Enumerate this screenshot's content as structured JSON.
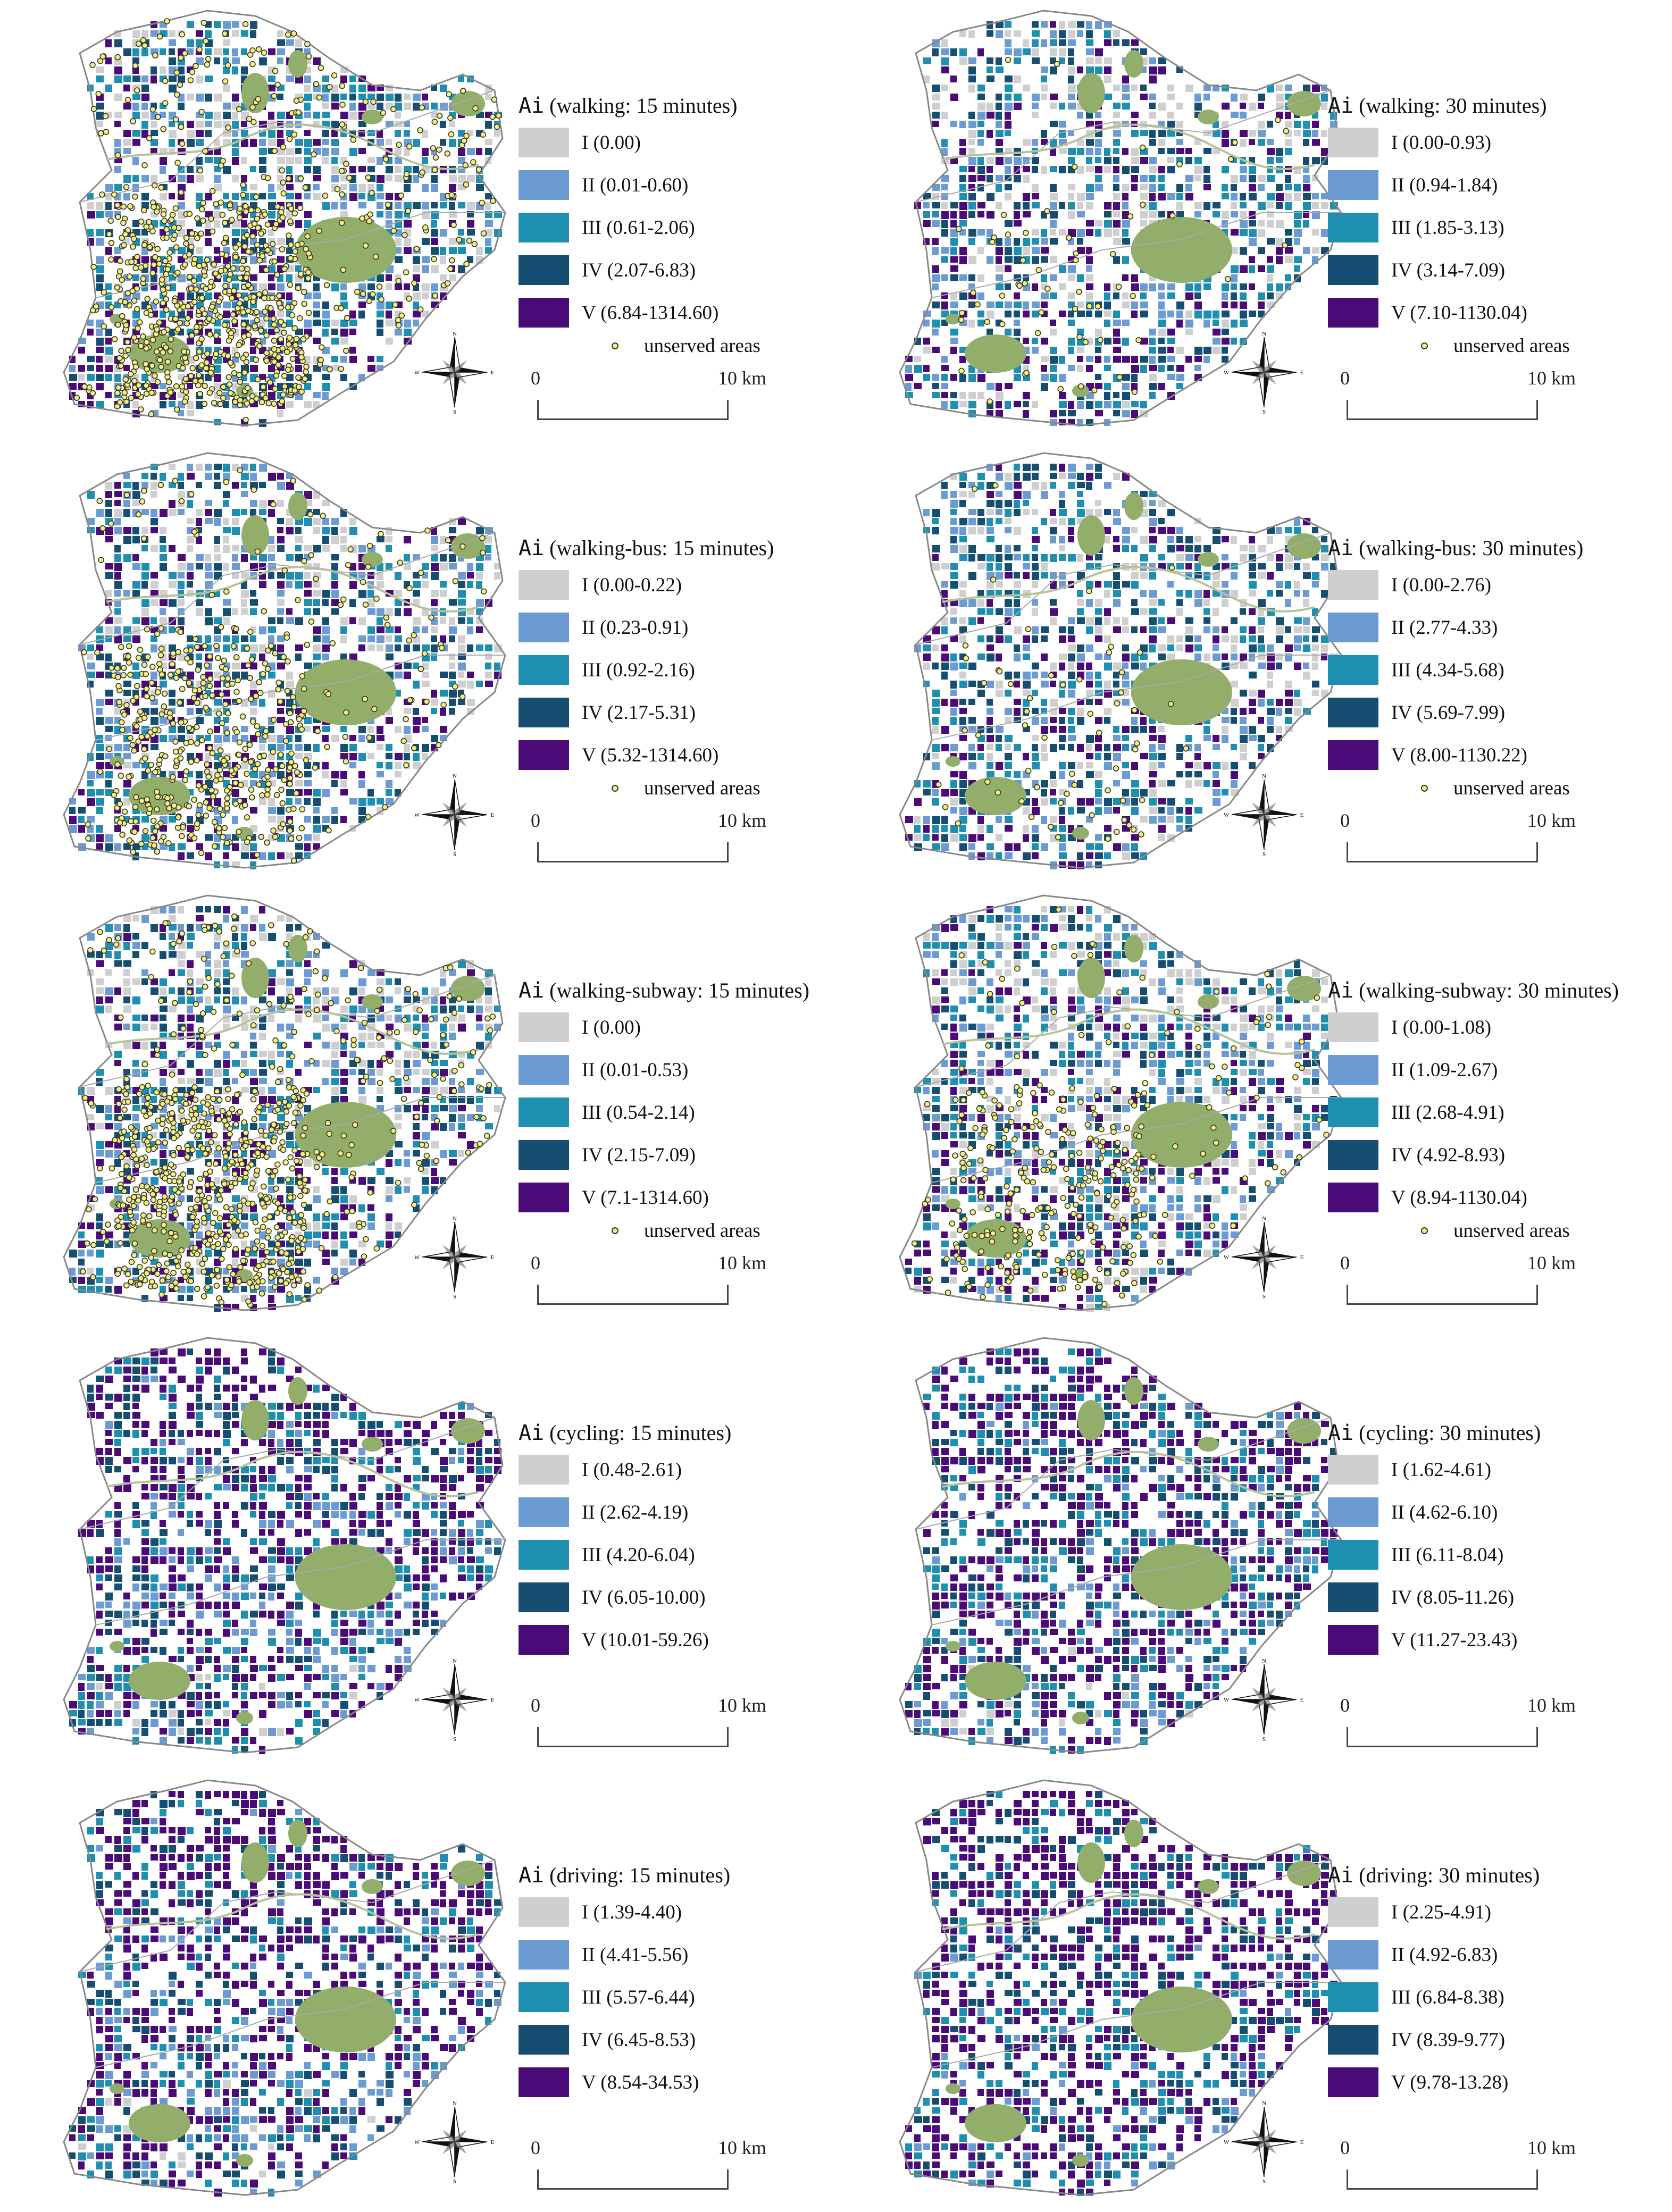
{
  "colors": {
    "class_I": "#cfcfcf",
    "class_II": "#6b9bd2",
    "class_III": "#1e8fb0",
    "class_IV": "#164e72",
    "class_V": "#4a0a78",
    "greenspace": "#93ae6a",
    "unserved_fill": "#f3ef7d",
    "boundary": "#888888"
  },
  "common": {
    "ai_label": "Ai",
    "unserved_label": "unserved areas",
    "scale_zero": "0",
    "scale_ten": "10 km",
    "compass": {
      "n": "N",
      "s": "S",
      "w": "W",
      "e": "E"
    }
  },
  "panels": [
    {
      "title": "(walking: 15 minutes)",
      "classes": [
        "I (0.00)",
        "II (0.01-0.60)",
        "III (0.61-2.06)",
        "IV (2.07-6.83)",
        "V (6.84-1314.60)"
      ],
      "unserved": true,
      "unserved_level": 0.9
    },
    {
      "title": "(walking: 30 minutes)",
      "classes": [
        "I (0.00-0.93)",
        "II (0.94-1.84)",
        "III (1.85-3.13)",
        "IV (3.14-7.09)",
        "V (7.10-1130.04)"
      ],
      "unserved": true,
      "unserved_level": 0.0
    },
    {
      "title": "(walking-bus: 15 minutes)",
      "classes": [
        "I (0.00-0.22)",
        "II (0.23-0.91)",
        "III (0.92-2.16)",
        "IV (2.17-5.31)",
        "V (5.32-1314.60)"
      ],
      "unserved": true,
      "unserved_level": 0.5
    },
    {
      "title": "(walking-bus: 30 minutes)",
      "classes": [
        "I (0.00-2.76)",
        "II (2.77-4.33)",
        "III (4.34-5.68)",
        "IV (5.69-7.99)",
        "V (8.00-1130.22)"
      ],
      "unserved": true,
      "unserved_level": 0.0
    },
    {
      "title": "(walking-subway: 15 minutes)",
      "classes": [
        "I (0.00)",
        "II (0.01-0.53)",
        "III (0.54-2.14)",
        "IV (2.15-7.09)",
        "V (7.1-1314.60)"
      ],
      "unserved": true,
      "unserved_level": 0.85
    },
    {
      "title": "(walking-subway: 30 minutes)",
      "classes": [
        "I (0.00-1.08)",
        "II (1.09-2.67)",
        "III (2.68-4.91)",
        "IV (4.92-8.93)",
        "V (8.94-1130.04)"
      ],
      "unserved": true,
      "unserved_level": 0.3
    },
    {
      "title": "(cycling: 15 minutes)",
      "classes": [
        "I (0.48-2.61)",
        "II (2.62-4.19)",
        "III (4.20-6.04)",
        "IV (6.05-10.00)",
        "V (10.01-59.26)"
      ],
      "unserved": false,
      "unserved_level": 0
    },
    {
      "title": "(cycling: 30 minutes)",
      "classes": [
        "I (1.62-4.61)",
        "II (4.62-6.10)",
        "III (6.11-8.04)",
        "IV (8.05-11.26)",
        "V (11.27-23.43)"
      ],
      "unserved": false,
      "unserved_level": 0
    },
    {
      "title": "(driving: 15 minutes)",
      "classes": [
        "I (1.39-4.40)",
        "II (4.41-5.56)",
        "III (5.57-6.44)",
        "IV (6.45-8.53)",
        "V (8.54-34.53)"
      ],
      "unserved": false,
      "unserved_level": 0
    },
    {
      "title": "(driving: 30 minutes)",
      "classes": [
        "I (2.25-4.91)",
        "II (4.92-6.83)",
        "III (6.84-8.38)",
        "IV (8.39-9.77)",
        "V (9.78-13.28)"
      ],
      "unserved": false,
      "unserved_level": 0
    }
  ]
}
